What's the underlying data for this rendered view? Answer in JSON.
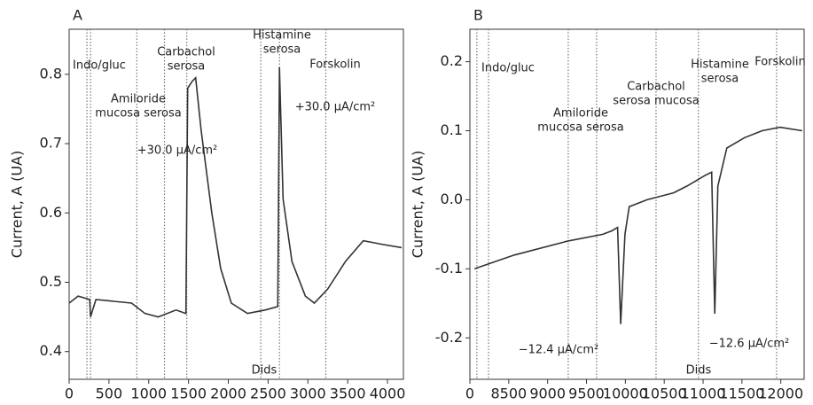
{
  "chart_data": [
    {
      "type": "line",
      "title": "A",
      "ylabel": "Current, A (UA)",
      "color": "#333333",
      "xlim": [
        0,
        4200
      ],
      "ylim": [
        0.36,
        0.865
      ],
      "xticks": [
        0,
        500,
        1000,
        1500,
        2000,
        2500,
        3000,
        3500,
        4000
      ],
      "yticks": [
        0.4,
        0.5,
        0.6,
        0.7,
        0.8
      ],
      "x": [
        0,
        112,
        258,
        269,
        336,
        784,
        952,
        1120,
        1344,
        1467,
        1490,
        1546,
        1590,
        1658,
        1792,
        1904,
        2038,
        2240,
        2464,
        2621,
        2643,
        2688,
        2800,
        2968,
        3080,
        3248,
        3472,
        3696,
        3920,
        4178
      ],
      "values": [
        0.47,
        0.48,
        0.475,
        0.45,
        0.475,
        0.47,
        0.455,
        0.45,
        0.46,
        0.455,
        0.78,
        0.79,
        0.795,
        0.72,
        0.6,
        0.52,
        0.47,
        0.455,
        0.46,
        0.465,
        0.81,
        0.62,
        0.53,
        0.48,
        0.47,
        0.49,
        0.53,
        0.56,
        0.555,
        0.55
      ],
      "vlines": [
        224,
        269,
        851,
        1198,
        1478,
        2408,
        2643,
        3225
      ],
      "annotations": [
        [
          "Indo/gluc"
        ],
        [
          "Amiloride",
          "mucosa serosa"
        ],
        [
          "+30.0 μA/cm²"
        ],
        [
          "Carbachol",
          "serosa"
        ],
        [
          "Histamine",
          "serosa"
        ],
        [
          "Forskolin"
        ],
        [
          "+30.0 μA/cm²"
        ],
        [
          "Dids"
        ]
      ]
    },
    {
      "type": "line",
      "title": "B",
      "ylabel": "Current, A (UA)",
      "color": "#333333",
      "xlim": [
        8000,
        12300
      ],
      "ylim": [
        -0.26,
        0.247
      ],
      "xticks": [
        {
          "value": 8000,
          "label": "0"
        },
        8500,
        9000,
        9500,
        10000,
        10500,
        11000,
        11500,
        12000
      ],
      "yticks": [
        -0.2,
        -0.1,
        {
          "value": 0,
          "label": "0.0"
        },
        0.1,
        0.2
      ],
      "x": [
        8060,
        8570,
        9250,
        9710,
        9825,
        9900,
        9940,
        9995,
        10050,
        10280,
        10450,
        10620,
        10795,
        11020,
        11110,
        11150,
        11190,
        11305,
        11535,
        11760,
        11990,
        12275
      ],
      "values": [
        -0.1,
        -0.08,
        -0.06,
        -0.05,
        -0.045,
        -0.04,
        -0.18,
        -0.05,
        -0.01,
        0.0,
        0.005,
        0.01,
        0.02,
        0.035,
        0.04,
        -0.165,
        0.02,
        0.075,
        0.09,
        0.1,
        0.105,
        0.1
      ],
      "vlines": [
        8090,
        8240,
        9265,
        9630,
        10395,
        10940,
        11945
      ],
      "annotations": [
        [
          "Indo/gluc"
        ],
        [
          "Amiloride",
          "mucosa serosa"
        ],
        [
          "−12.4 μA/cm²"
        ],
        [
          "Carbachol",
          "serosa mucosa"
        ],
        [
          "Histamine",
          "serosa"
        ],
        [
          "−12.6 μA/cm²"
        ],
        [
          "Forskolin"
        ],
        [
          "Dids"
        ]
      ]
    }
  ]
}
